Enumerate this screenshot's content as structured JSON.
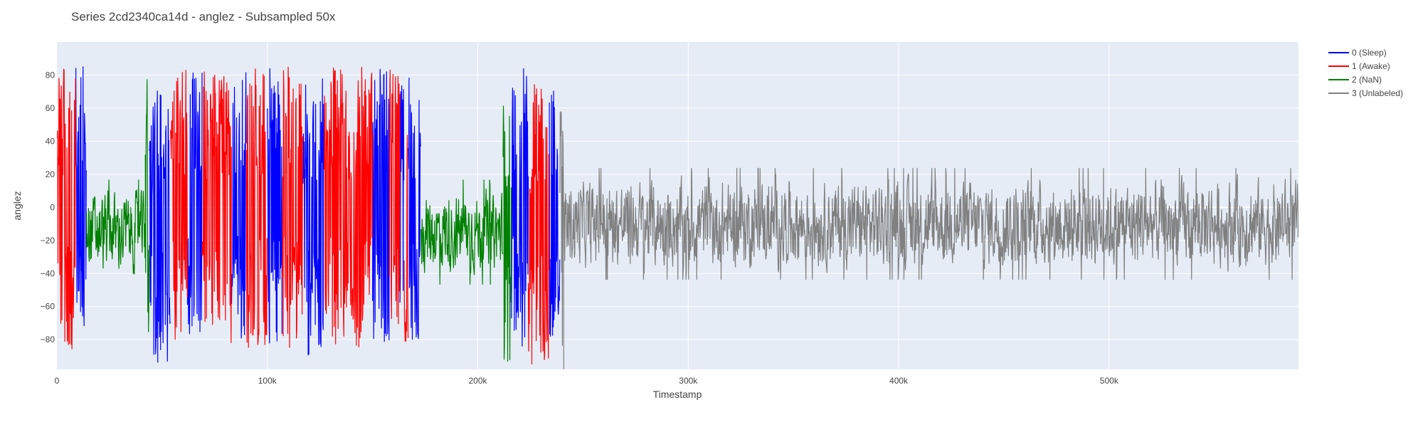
{
  "chart_data": {
    "type": "line",
    "title": "Series 2cd2340ca14d - anglez - Subsampled 50x",
    "xlabel": "Timestamp",
    "ylabel": "anglez",
    "xlim": [
      0,
      590000
    ],
    "ylim": [
      -98,
      100
    ],
    "x_ticks": [
      0,
      100000,
      200000,
      300000,
      400000,
      500000
    ],
    "x_tick_labels": [
      "0",
      "100k",
      "200k",
      "300k",
      "400k",
      "500k"
    ],
    "y_ticks": [
      -80,
      -60,
      -40,
      -20,
      0,
      20,
      40,
      60,
      80
    ],
    "y_tick_labels": [
      "−80",
      "−60",
      "−40",
      "−20",
      "0",
      "20",
      "40",
      "60",
      "80"
    ],
    "grid": true,
    "legend_position": "top-right",
    "plot_background": "#e5ecf6",
    "series": [
      {
        "name": "0 (Sleep)",
        "color": "#0000ff",
        "segments": [
          {
            "x_start": 9000,
            "x_end": 14000,
            "amplitude": 85,
            "center": 0
          },
          {
            "x_start": 44000,
            "x_end": 54000,
            "amplitude": 85,
            "center": -10
          },
          {
            "x_start": 62000,
            "x_end": 69000,
            "amplitude": 85,
            "center": 0
          },
          {
            "x_start": 83000,
            "x_end": 90000,
            "amplitude": 85,
            "center": 0
          },
          {
            "x_start": 100000,
            "x_end": 107000,
            "amplitude": 85,
            "center": 0
          },
          {
            "x_start": 117000,
            "x_end": 127000,
            "amplitude": 85,
            "center": -5
          },
          {
            "x_start": 150000,
            "x_end": 158000,
            "amplitude": 85,
            "center": 0
          },
          {
            "x_start": 163000,
            "x_end": 165000,
            "amplitude": 80,
            "center": 0
          },
          {
            "x_start": 167000,
            "x_end": 173000,
            "amplitude": 80,
            "center": 0
          },
          {
            "x_start": 216000,
            "x_end": 224000,
            "amplitude": 85,
            "center": 0
          },
          {
            "x_start": 234000,
            "x_end": 239000,
            "amplitude": 80,
            "center": 0
          }
        ]
      },
      {
        "name": "1 (Awake)",
        "color": "#ff0000",
        "segments": [
          {
            "x_start": 0,
            "x_end": 9000,
            "amplitude": 88,
            "center": 0
          },
          {
            "x_start": 54000,
            "x_end": 62000,
            "amplitude": 85,
            "center": 0
          },
          {
            "x_start": 69000,
            "x_end": 83000,
            "amplitude": 85,
            "center": 0
          },
          {
            "x_start": 90000,
            "x_end": 100000,
            "amplitude": 85,
            "center": 0
          },
          {
            "x_start": 107000,
            "x_end": 117000,
            "amplitude": 85,
            "center": 0
          },
          {
            "x_start": 127000,
            "x_end": 150000,
            "amplitude": 85,
            "center": 0
          },
          {
            "x_start": 158000,
            "x_end": 163000,
            "amplitude": 85,
            "center": 0
          },
          {
            "x_start": 165000,
            "x_end": 167000,
            "amplitude": 85,
            "center": 0
          },
          {
            "x_start": 224000,
            "x_end": 234000,
            "amplitude": 85,
            "center": -10
          }
        ]
      },
      {
        "name": "2 (NaN)",
        "color": "#008000",
        "segments": [
          {
            "x_start": 14000,
            "x_end": 42000,
            "amplitude": 30,
            "center": -15
          },
          {
            "x_start": 42000,
            "x_end": 44000,
            "amplitude": 80,
            "center": 0
          },
          {
            "x_start": 173000,
            "x_end": 212000,
            "amplitude": 30,
            "center": -15
          },
          {
            "x_start": 212000,
            "x_end": 216000,
            "amplitude": 85,
            "center": -10
          }
        ]
      },
      {
        "name": "3 (Unlabeled)",
        "color": "#808080",
        "segments": [
          {
            "x_start": 239000,
            "x_end": 241000,
            "amplitude": 88,
            "center": -20
          },
          {
            "x_start": 241000,
            "x_end": 590000,
            "amplitude": 32,
            "center": -10
          }
        ]
      }
    ]
  }
}
